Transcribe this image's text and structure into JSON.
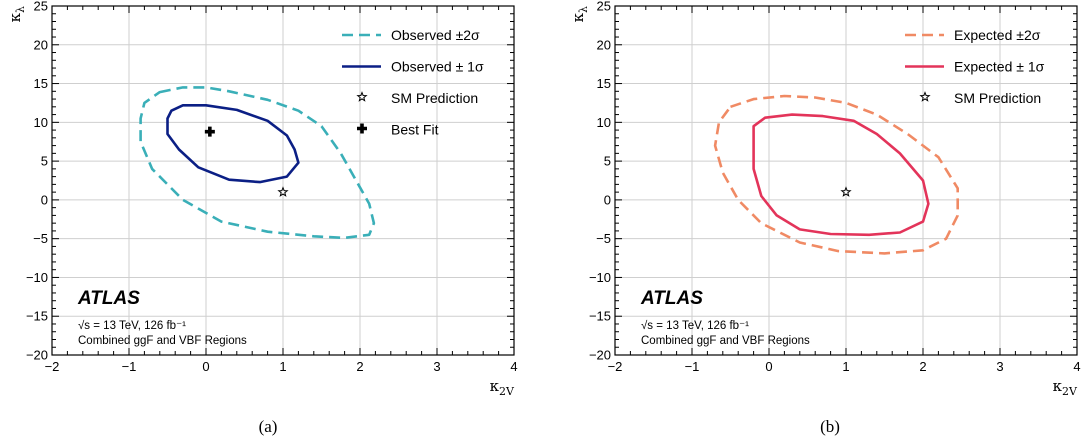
{
  "chart_data": [
    {
      "type": "contour",
      "panel_label": "(a)",
      "xlabel": "κ2V",
      "ylabel": "κλ",
      "xlim": [
        -2,
        4
      ],
      "ylim": [
        -20,
        25
      ],
      "grid": true,
      "legend_placement": "top-right",
      "x_ticks": [
        "−2",
        "−1",
        "0",
        "1",
        "2",
        "3",
        "4"
      ],
      "y_ticks": [
        "−20",
        "−15",
        "−10",
        "−5",
        "0",
        "5",
        "10",
        "15",
        "20",
        "25"
      ],
      "legend": [
        {
          "label": "Observed ±2σ",
          "style": "dashed",
          "color": "#3aafb8"
        },
        {
          "label": "Observed ± 1σ",
          "style": "solid",
          "color": "#0b1f85"
        },
        {
          "label": "SM Prediction",
          "marker": "star"
        },
        {
          "label": "Best Fit",
          "marker": "plus"
        }
      ],
      "experiment": "ATLAS",
      "annotation_energy": "√s = 13 TeV, 126 fb⁻¹",
      "annotation_regions": "Combined ggF and VBF Regions",
      "series": [
        {
          "name": "Observed ±2σ",
          "style": "dashed",
          "color": "#3aafb8",
          "points": [
            [
              -0.6,
              13.9
            ],
            [
              -0.3,
              14.5
            ],
            [
              0.0,
              14.5
            ],
            [
              0.3,
              14
            ],
            [
              0.8,
              12.9
            ],
            [
              1.2,
              11.5
            ],
            [
              1.5,
              9.5
            ],
            [
              1.75,
              6
            ],
            [
              1.95,
              2.5
            ],
            [
              2.12,
              -0.5
            ],
            [
              2.18,
              -3
            ],
            [
              2.12,
              -4.5
            ],
            [
              1.8,
              -4.9
            ],
            [
              1.4,
              -4.7
            ],
            [
              0.8,
              -4.1
            ],
            [
              0.2,
              -2.8
            ],
            [
              -0.3,
              0
            ],
            [
              -0.7,
              4
            ],
            [
              -0.85,
              7.5
            ],
            [
              -0.85,
              10.5
            ],
            [
              -0.8,
              12.5
            ]
          ]
        },
        {
          "name": "Observed ± 1σ",
          "style": "solid",
          "color": "#0b1f85",
          "points": [
            [
              -0.45,
              11.5
            ],
            [
              -0.3,
              12.2
            ],
            [
              0.0,
              12.2
            ],
            [
              0.4,
              11.6
            ],
            [
              0.8,
              10.2
            ],
            [
              1.05,
              8.3
            ],
            [
              1.15,
              6.5
            ],
            [
              1.2,
              4.8
            ],
            [
              1.05,
              3.0
            ],
            [
              0.7,
              2.3
            ],
            [
              0.3,
              2.6
            ],
            [
              -0.1,
              4.2
            ],
            [
              -0.35,
              6.5
            ],
            [
              -0.5,
              8.5
            ],
            [
              -0.5,
              10.5
            ]
          ]
        },
        {
          "name": "SM Prediction",
          "marker": "star",
          "points": [
            [
              1,
              1
            ]
          ]
        },
        {
          "name": "Best Fit",
          "marker": "plus",
          "points": [
            [
              0.05,
              8.8
            ]
          ]
        }
      ]
    },
    {
      "type": "contour",
      "panel_label": "(b)",
      "xlabel": "κ2V",
      "ylabel": "κλ",
      "xlim": [
        -2,
        4
      ],
      "ylim": [
        -20,
        25
      ],
      "grid": true,
      "legend_placement": "top-right",
      "x_ticks": [
        "−2",
        "−1",
        "0",
        "1",
        "2",
        "3",
        "4"
      ],
      "y_ticks": [
        "−20",
        "−15",
        "−10",
        "−5",
        "0",
        "5",
        "10",
        "15",
        "20",
        "25"
      ],
      "legend": [
        {
          "label": "Expected ±2σ",
          "style": "dashed",
          "color": "#f08a64"
        },
        {
          "label": "Expected ± 1σ",
          "style": "solid",
          "color": "#e3345a"
        },
        {
          "label": "SM Prediction",
          "marker": "star"
        }
      ],
      "experiment": "ATLAS",
      "annotation_energy": "√s = 13 TeV, 126 fb⁻¹",
      "annotation_regions": "Combined ggF and VBF Regions",
      "series": [
        {
          "name": "Expected ±2σ",
          "style": "dashed",
          "color": "#f08a64",
          "points": [
            [
              -0.5,
              12
            ],
            [
              -0.2,
              13
            ],
            [
              0.2,
              13.4
            ],
            [
              0.6,
              13.2
            ],
            [
              1.0,
              12.5
            ],
            [
              1.4,
              11
            ],
            [
              1.8,
              8.5
            ],
            [
              2.2,
              5.5
            ],
            [
              2.45,
              1.5
            ],
            [
              2.45,
              -2
            ],
            [
              2.3,
              -5
            ],
            [
              2.0,
              -6.5
            ],
            [
              1.5,
              -6.9
            ],
            [
              0.9,
              -6.6
            ],
            [
              0.4,
              -5.5
            ],
            [
              -0.1,
              -3
            ],
            [
              -0.4,
              0
            ],
            [
              -0.6,
              3.5
            ],
            [
              -0.7,
              7
            ],
            [
              -0.65,
              10
            ]
          ]
        },
        {
          "name": "Expected ± 1σ",
          "style": "solid",
          "color": "#e3345a",
          "points": [
            [
              -0.2,
              9.5
            ],
            [
              -0.05,
              10.6
            ],
            [
              0.3,
              11
            ],
            [
              0.7,
              10.8
            ],
            [
              1.1,
              10.2
            ],
            [
              1.4,
              8.5
            ],
            [
              1.7,
              6
            ],
            [
              2.0,
              2.5
            ],
            [
              2.07,
              -0.5
            ],
            [
              2.0,
              -2.8
            ],
            [
              1.7,
              -4.2
            ],
            [
              1.3,
              -4.5
            ],
            [
              0.8,
              -4.4
            ],
            [
              0.4,
              -3.8
            ],
            [
              0.1,
              -2
            ],
            [
              -0.1,
              0.5
            ],
            [
              -0.2,
              4
            ],
            [
              -0.2,
              7
            ]
          ]
        },
        {
          "name": "SM Prediction",
          "marker": "star",
          "points": [
            [
              1,
              1
            ]
          ]
        }
      ]
    }
  ]
}
